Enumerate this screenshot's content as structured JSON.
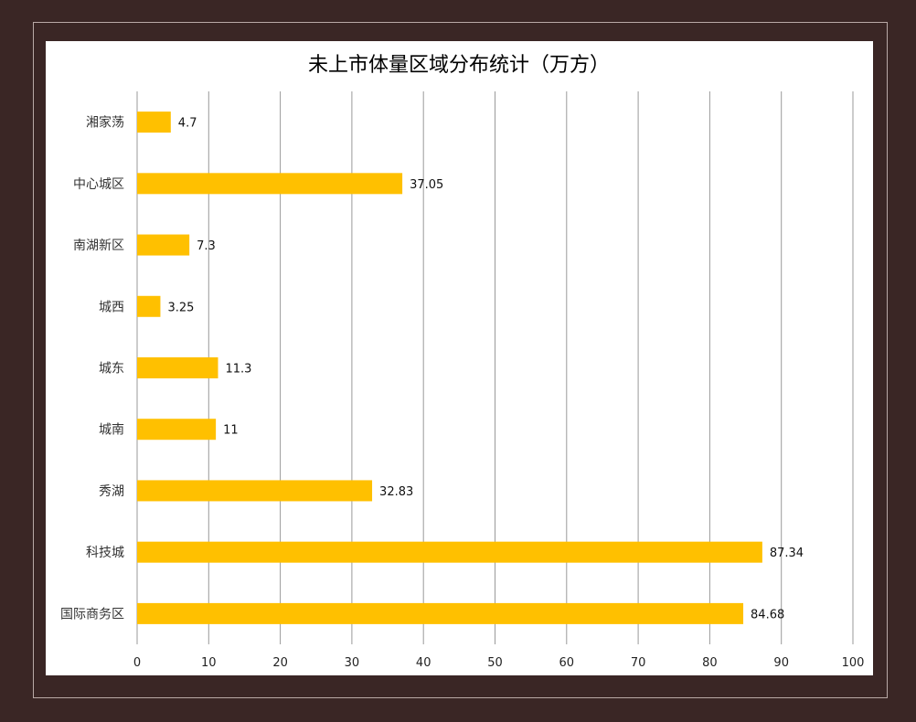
{
  "chart_data": {
    "type": "bar",
    "orientation": "horizontal",
    "title": "未上市体量区域分布统计（万方）",
    "categories": [
      "湘家荡",
      "中心城区",
      "南湖新区",
      "城西",
      "城东",
      "城南",
      "秀湖",
      "科技城",
      "国际商务区"
    ],
    "values": [
      4.7,
      37.05,
      7.3,
      3.25,
      11.3,
      11,
      32.83,
      87.34,
      84.68
    ],
    "data_labels": [
      "4.7",
      "37.05",
      "7.3",
      "3.25",
      "11.3",
      "11",
      "32.83",
      "87.34",
      "84.68"
    ],
    "xlim": [
      0,
      100
    ],
    "x_ticks": [
      0,
      10,
      20,
      30,
      40,
      50,
      60,
      70,
      80,
      90,
      100
    ],
    "x_tick_labels": [
      "0",
      "10",
      "20",
      "30",
      "40",
      "50",
      "60",
      "70",
      "80",
      "90",
      "100"
    ],
    "xlabel": "",
    "ylabel": "",
    "grid": "vertical",
    "legend": "none",
    "bar_color": "#FFC000",
    "grid_color": "#9a9a9a"
  }
}
